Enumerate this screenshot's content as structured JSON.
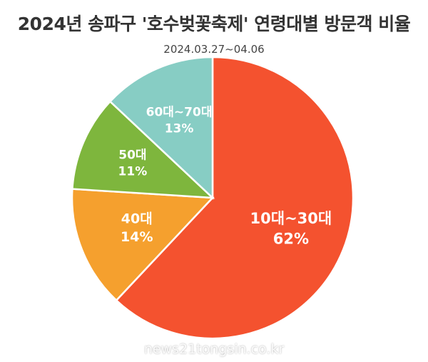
{
  "chart_data": {
    "type": "pie",
    "title": "2024년 송파구 '호수벚꽃축제' 연령대별 방문객 비율",
    "subtitle": "2024.03.27~04.06",
    "start_angle_deg": 0,
    "direction": "clockwise",
    "slices": [
      {
        "label": "10대~30대",
        "value": 62,
        "value_label": "62%",
        "color": "#f4522f"
      },
      {
        "label": "40대",
        "value": 14,
        "value_label": "14%",
        "color": "#f5a02e"
      },
      {
        "label": "50대",
        "value": 11,
        "value_label": "11%",
        "color": "#7eb63d"
      },
      {
        "label": "60대~70대",
        "value": 13,
        "value_label": "13%",
        "color": "#87cdc4"
      }
    ]
  },
  "watermark": "news21tongsin.co.kr"
}
